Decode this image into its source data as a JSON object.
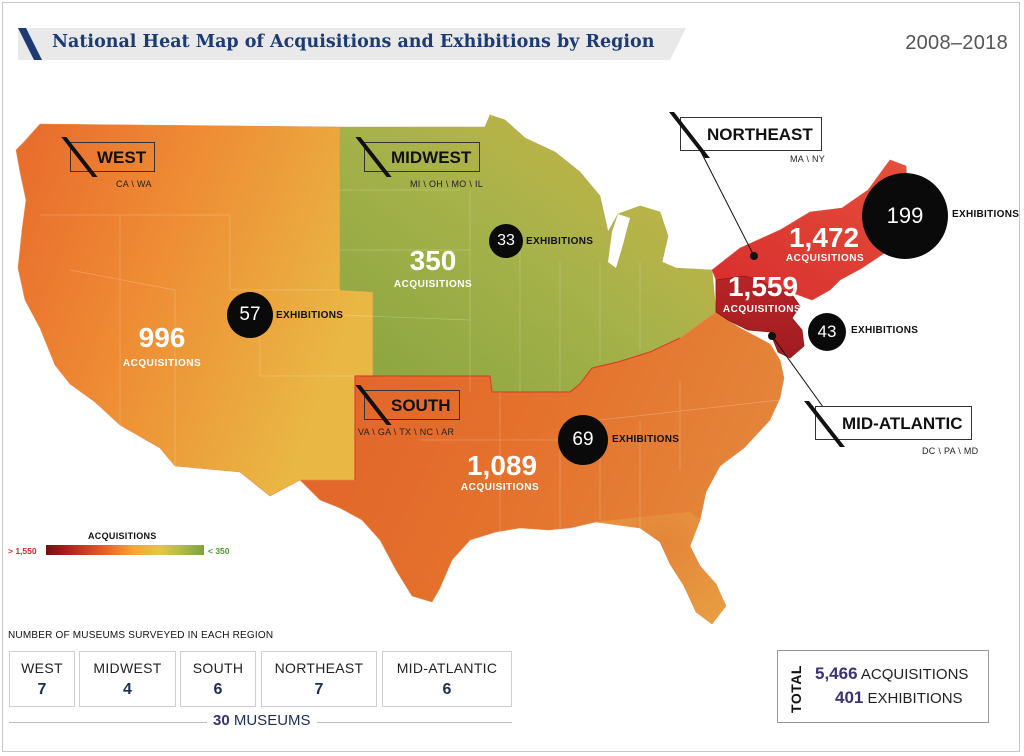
{
  "header": {
    "title": "National Heat Map of Acquisitions and Exhibitions by Region",
    "years": "2008–2018",
    "accent_color": "#1d3a73"
  },
  "regions": {
    "west": {
      "name": "WEST",
      "states": "CA \\ WA",
      "acquisitions": "996",
      "acq_label": "ACQUISITIONS",
      "exhibitions": "57",
      "exh_label": "EXHIBITIONS"
    },
    "midwest": {
      "name": "MIDWEST",
      "states": "MI \\ OH \\ MO \\ IL",
      "acquisitions": "350",
      "acq_label": "ACQUISITIONS",
      "exhibitions": "33",
      "exh_label": "EXHIBITIONS"
    },
    "south": {
      "name": "SOUTH",
      "states": "VA \\ GA \\ TX \\ NC \\ AR",
      "acquisitions": "1,089",
      "acq_label": "ACQUISITIONS",
      "exhibitions": "69",
      "exh_label": "EXHIBITIONS"
    },
    "northeast": {
      "name": "NORTHEAST",
      "states": "MA \\ NY",
      "acquisitions": "1,472",
      "acq_label": "ACQUISITIONS",
      "exhibitions": "199",
      "exh_label": "EXHIBITIONS"
    },
    "midatlantic": {
      "name": "MID-ATLANTIC",
      "states": "DC \\ PA \\ MD",
      "acquisitions": "1,559",
      "acq_label": "ACQUISITIONS",
      "exhibitions": "43",
      "exh_label": "EXHIBITIONS"
    }
  },
  "legend": {
    "title": "ACQUISITIONS",
    "high": "> 1,550",
    "low": "< 350",
    "high_color": "#d32a2a",
    "low_color": "#4a9a2a"
  },
  "museums": {
    "title": "NUMBER OF MUSEUMS SURVEYED IN EACH REGION",
    "items": [
      {
        "name": "WEST",
        "count": "7"
      },
      {
        "name": "MIDWEST",
        "count": "4"
      },
      {
        "name": "SOUTH",
        "count": "6"
      },
      {
        "name": "NORTHEAST",
        "count": "7"
      },
      {
        "name": "MID-ATLANTIC",
        "count": "6"
      }
    ],
    "total_number": "30",
    "total_label": "MUSEUMS"
  },
  "totals": {
    "label": "TOTAL",
    "acquisitions": "5,466",
    "acquisitions_label": "ACQUISITIONS",
    "exhibitions": "401",
    "exhibitions_label": "EXHIBITIONS"
  }
}
